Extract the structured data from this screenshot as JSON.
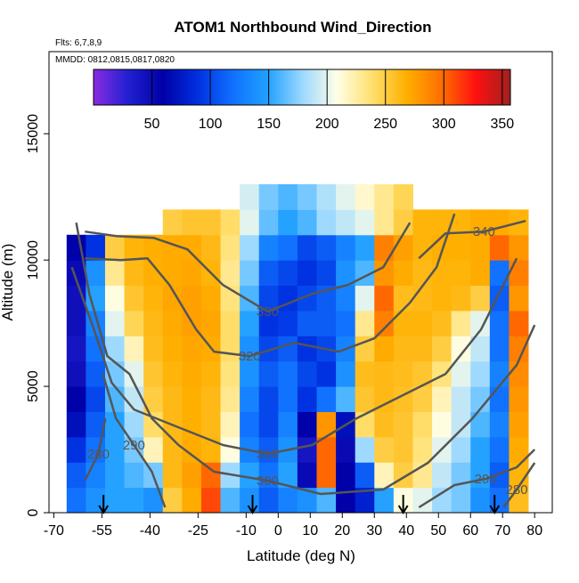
{
  "chart_data": {
    "type": "heatmap",
    "title": "ATOM1 Northbound Wind_Direction",
    "annotations": [
      "Flts: 6,7,8,9",
      "MMDD: 0812,0815,0817,0820"
    ],
    "x_label": "Latitude (deg N)",
    "y_label": "Altitude (m)",
    "xlim": [
      -71.5,
      85.5
    ],
    "ylim": [
      0,
      18250
    ],
    "xticks": [
      -70,
      -55,
      -40,
      -25,
      -10,
      0,
      10,
      20,
      30,
      40,
      50,
      60,
      70,
      80
    ],
    "yticks": [
      0,
      5000,
      10000,
      15000
    ],
    "clim": [
      0,
      357
    ],
    "cticks": [
      50,
      100,
      150,
      200,
      250,
      300,
      350
    ],
    "colormap": [
      "#8a2be2",
      "#2020d0",
      "#0000a8",
      "#0030e0",
      "#1070ff",
      "#20a0ff",
      "#9ad8ff",
      "#ffffe8",
      "#ffe070",
      "#ffb000",
      "#ff7000",
      "#ff1010",
      "#a02020"
    ],
    "x_edges": [
      -66,
      -60,
      -54,
      -48,
      -42,
      -36,
      -30,
      -24,
      -18,
      -12,
      -6,
      0,
      6,
      12,
      18,
      24,
      30,
      36,
      42,
      48,
      54,
      60,
      66,
      72,
      78
    ],
    "y_edges": [
      0,
      1000,
      2000,
      3000,
      4000,
      5000,
      6000,
      7000,
      8000,
      9000,
      10000,
      11000,
      12000,
      13000
    ],
    "z": [
      [
        120,
        140,
        150,
        150,
        140,
        250,
        270,
        310,
        160,
        140,
        110,
        130,
        140,
        160,
        60,
        80,
        150,
        210,
        200,
        180,
        170,
        140,
        120,
        260
      ],
      [
        110,
        130,
        150,
        160,
        170,
        262,
        275,
        300,
        180,
        150,
        120,
        150,
        50,
        300,
        60,
        110,
        220,
        250,
        230,
        190,
        170,
        150,
        110,
        265
      ],
      [
        90,
        120,
        150,
        170,
        220,
        262,
        270,
        265,
        210,
        130,
        110,
        140,
        40,
        300,
        50,
        180,
        250,
        255,
        235,
        200,
        180,
        150,
        120,
        270
      ],
      [
        70,
        110,
        150,
        180,
        240,
        262,
        268,
        262,
        220,
        120,
        100,
        130,
        60,
        280,
        70,
        240,
        260,
        255,
        240,
        210,
        190,
        160,
        130,
        275
      ],
      [
        60,
        100,
        160,
        190,
        250,
        262,
        268,
        262,
        230,
        130,
        100,
        120,
        90,
        120,
        160,
        255,
        262,
        258,
        250,
        220,
        190,
        170,
        120,
        280
      ],
      [
        45,
        110,
        170,
        200,
        255,
        265,
        270,
        265,
        235,
        140,
        110,
        120,
        100,
        90,
        140,
        260,
        262,
        260,
        255,
        235,
        200,
        180,
        130,
        285
      ],
      [
        40,
        120,
        180,
        220,
        260,
        268,
        272,
        270,
        240,
        140,
        100,
        110,
        90,
        100,
        130,
        250,
        270,
        262,
        262,
        250,
        210,
        190,
        120,
        290
      ],
      [
        45,
        130,
        200,
        245,
        262,
        270,
        275,
        272,
        240,
        150,
        90,
        95,
        110,
        110,
        120,
        230,
        290,
        265,
        265,
        260,
        230,
        200,
        120,
        300
      ],
      [
        45,
        150,
        210,
        255,
        265,
        272,
        275,
        270,
        235,
        160,
        100,
        90,
        100,
        110,
        130,
        200,
        300,
        260,
        262,
        265,
        262,
        250,
        110,
        280
      ],
      [
        50,
        140,
        230,
        262,
        268,
        270,
        272,
        265,
        230,
        170,
        110,
        100,
        90,
        100,
        140,
        160,
        280,
        270,
        262,
        265,
        265,
        270,
        120,
        290
      ],
      [
        60,
        90,
        250,
        265,
        268,
        270,
        270,
        262,
        235,
        180,
        130,
        120,
        100,
        110,
        130,
        150,
        290,
        275,
        265,
        268,
        268,
        270,
        300,
        280
      ],
      [
        null,
        null,
        null,
        null,
        null,
        250,
        255,
        255,
        240,
        200,
        165,
        150,
        160,
        180,
        190,
        200,
        230,
        250,
        265,
        265,
        265,
        270,
        270,
        265
      ],
      [
        null,
        null,
        null,
        null,
        null,
        null,
        null,
        null,
        null,
        195,
        170,
        160,
        170,
        185,
        200,
        215,
        230,
        245,
        null,
        null,
        null,
        null,
        null,
        null
      ]
    ],
    "contour_color": "#555555",
    "contours": [
      {
        "level": 340,
        "x": [
          43.9,
          52.2,
          64.2,
          77.2
        ],
        "y": [
          10070,
          11056,
          11127,
          11550
        ]
      },
      {
        "level": 330,
        "x": [
          -60.3,
          -50.6,
          -38.9,
          -28.3,
          -17.2,
          -3.3,
          10.6,
          21.7,
          32.8,
          41.1
        ],
        "y": [
          11127,
          10950,
          10880,
          10420,
          9014,
          7958,
          8662,
          9014,
          9718,
          11480
        ]
      },
      {
        "level": 320,
        "x": [
          -60.3,
          -49.2,
          -40.8,
          -33.9,
          -25.6,
          -20,
          -8.9,
          5,
          18.9,
          30,
          41.1,
          49.4,
          55
        ],
        "y": [
          10070,
          10000,
          10070,
          9014,
          7254,
          6373,
          6197,
          6725,
          6373,
          6901,
          8310,
          9718,
          11831
        ]
      },
      {
        "level": 310,
        "x": [
          -64.4,
          -57.5,
          -51.9,
          -45,
          -31.1,
          -17.2,
          -3.3,
          10.6,
          24.4,
          38.3,
          52.2,
          63.3,
          74.4
        ],
        "y": [
          9718,
          7254,
          5141,
          4085,
          3380,
          2676,
          2324,
          2676,
          3732,
          4613,
          5493,
          7254,
          10070
        ]
      },
      {
        "level": 300,
        "x": [
          -63,
          -58.9,
          -53.3,
          -46.4,
          -39.4,
          -31.1,
          -20,
          -3.3,
          13.3,
          32.8,
          46.7,
          60.6,
          74.4,
          80
        ],
        "y": [
          11480,
          8662,
          6197,
          5493,
          3732,
          2676,
          1620,
          1268,
          739,
          915,
          1972,
          3732,
          5845,
          7430
        ]
      },
      {
        "level": 290,
        "x": [
          -54.7,
          -50.6,
          -45,
          -39.4,
          -35.3,
          null,
          43.9,
          55,
          64.7,
          74.4,
          80
        ],
        "y": [
          5493,
          3732,
          2676,
          1620,
          211,
          null,
          211,
          1092,
          1338,
          1796,
          2500
        ]
      },
      {
        "level": 280,
        "x": [
          -60.3,
          -56.1,
          -53.9,
          null,
          70.3,
          74.4,
          80
        ],
        "y": [
          1268,
          2324,
          3732,
          null,
          211,
          915,
          1972
        ]
      }
    ],
    "markers_x": [
      -54.5,
      -8,
      39,
      67.5
    ]
  }
}
